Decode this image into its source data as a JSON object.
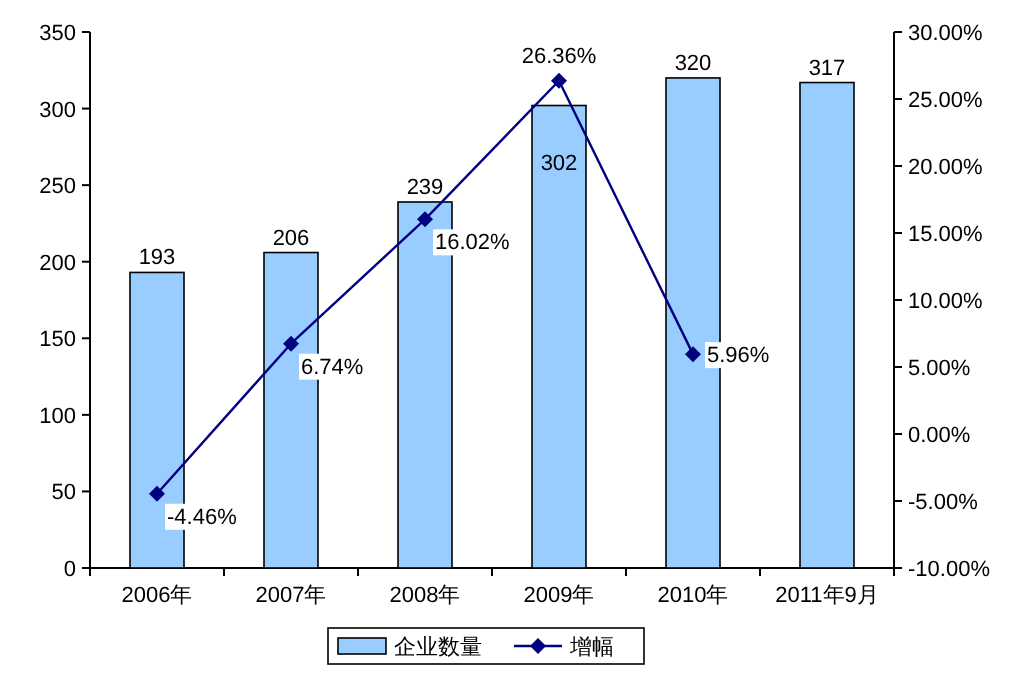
{
  "chart_data": {
    "type": "bar",
    "categories": [
      "2006年",
      "2007年",
      "2008年",
      "2009年",
      "2010年",
      "2011年9月"
    ],
    "series": [
      {
        "name": "企业数量",
        "color": "#99ccff",
        "values": [
          193,
          206,
          239,
          302,
          320,
          317
        ],
        "value_labels": [
          "193",
          "206",
          "239",
          "302",
          "320",
          "317"
        ]
      },
      {
        "name": "增幅",
        "type": "line",
        "axis": "y2",
        "color": "#000080",
        "marker": "diamond",
        "values": [
          -4.46,
          6.74,
          16.02,
          26.36,
          5.96,
          null
        ],
        "value_labels": [
          "-4.46%",
          "6.74%",
          "16.02%",
          "26.36%",
          "5.96%",
          null
        ]
      }
    ],
    "ylim": [
      0,
      350
    ],
    "yticks": [
      0,
      50,
      100,
      150,
      200,
      250,
      300,
      350
    ],
    "y2lim": [
      -10,
      30
    ],
    "y2ticks": [
      {
        "value": -10,
        "label": "-10.00%"
      },
      {
        "value": -5,
        "label": "-5.00%"
      },
      {
        "value": 0,
        "label": "0.00%"
      },
      {
        "value": 5,
        "label": "5.00%"
      },
      {
        "value": 10,
        "label": "10.00%"
      },
      {
        "value": 15,
        "label": "15.00%"
      },
      {
        "value": 20,
        "label": "20.00%"
      },
      {
        "value": 25,
        "label": "25.00%"
      },
      {
        "value": 30,
        "label": "30.00%"
      }
    ],
    "legend": "bottom",
    "grid": false
  }
}
